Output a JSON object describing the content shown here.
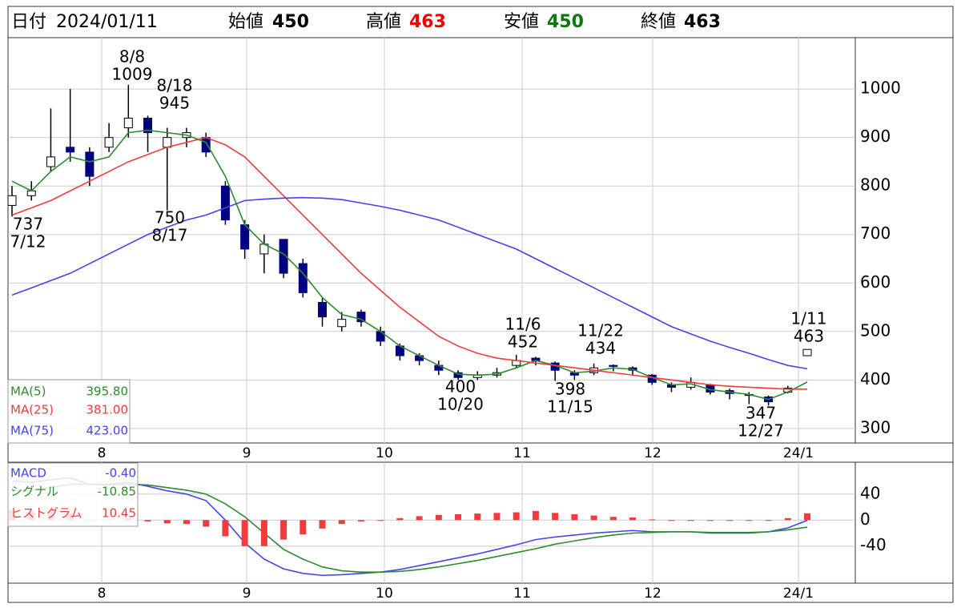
{
  "header": {
    "date_label": "日付",
    "date": "2024/01/11",
    "open_label": "始値",
    "open": 450,
    "high_label": "高値",
    "high": 463,
    "low_label": "安値",
    "low": 450,
    "close_label": "終値",
    "close": 463
  },
  "chart_data": [
    {
      "type": "candlestick",
      "months": [
        "8",
        "9",
        "10",
        "11",
        "12",
        "24/1"
      ],
      "open": [
        760,
        780,
        840,
        880,
        870,
        880,
        920,
        940,
        880,
        900,
        900,
        800,
        720,
        660,
        690,
        640,
        560,
        510,
        540,
        500,
        470,
        450,
        430,
        415,
        405,
        410,
        430,
        445,
        435,
        415,
        415,
        430,
        425,
        410,
        390,
        385,
        390,
        378,
        370,
        365,
        375,
        450
      ],
      "high": [
        800,
        810,
        960,
        1000,
        880,
        930,
        1009,
        945,
        920,
        920,
        910,
        810,
        730,
        700,
        690,
        650,
        570,
        540,
        545,
        510,
        475,
        455,
        440,
        420,
        418,
        425,
        452,
        448,
        438,
        420,
        434,
        432,
        428,
        412,
        395,
        405,
        392,
        382,
        375,
        368,
        388,
        463
      ],
      "low": [
        737,
        770,
        830,
        850,
        800,
        870,
        900,
        870,
        750,
        880,
        860,
        720,
        650,
        620,
        610,
        570,
        510,
        500,
        510,
        470,
        440,
        430,
        410,
        400,
        400,
        405,
        425,
        430,
        398,
        400,
        410,
        418,
        410,
        390,
        375,
        380,
        370,
        360,
        350,
        347,
        372,
        450
      ],
      "close": [
        780,
        790,
        860,
        870,
        820,
        900,
        940,
        910,
        900,
        910,
        870,
        730,
        670,
        680,
        620,
        580,
        530,
        525,
        520,
        480,
        450,
        440,
        420,
        405,
        410,
        415,
        440,
        440,
        420,
        410,
        425,
        428,
        420,
        395,
        385,
        395,
        375,
        372,
        368,
        355,
        383,
        463
      ],
      "up_color": "#ffffff",
      "down_color": "#000080",
      "series": [
        {
          "name": "MA(5)",
          "color": "#2e8b2e",
          "latest_label": "395.80",
          "values": [
            810,
            790,
            830,
            860,
            850,
            860,
            910,
            915,
            910,
            905,
            890,
            820,
            720,
            680,
            660,
            620,
            570,
            535,
            525,
            500,
            470,
            450,
            430,
            412,
            410,
            412,
            425,
            440,
            430,
            415,
            418,
            425,
            422,
            405,
            390,
            392,
            380,
            375,
            370,
            360,
            375,
            395.8
          ]
        },
        {
          "name": "MA(25)",
          "color": "#f03c3c",
          "latest_label": "381.00",
          "values": [
            740,
            755,
            770,
            790,
            810,
            830,
            850,
            865,
            880,
            890,
            900,
            885,
            860,
            820,
            780,
            740,
            700,
            660,
            620,
            585,
            550,
            520,
            490,
            470,
            455,
            445,
            440,
            435,
            430,
            425,
            420,
            415,
            410,
            405,
            400,
            395,
            390,
            387,
            385,
            383,
            381,
            381
          ]
        },
        {
          "name": "MA(75)",
          "color": "#4444ee",
          "latest_label": "423.00",
          "values": [
            575,
            590,
            605,
            620,
            640,
            660,
            680,
            700,
            715,
            730,
            740,
            755,
            770,
            773,
            775,
            776,
            775,
            772,
            765,
            758,
            750,
            740,
            730,
            715,
            700,
            685,
            670,
            650,
            630,
            610,
            590,
            570,
            550,
            530,
            510,
            495,
            480,
            467,
            455,
            442,
            430,
            423
          ]
        }
      ],
      "ylim": [
        270,
        1106
      ],
      "yticks": [
        300,
        400,
        500,
        600,
        700,
        800,
        900,
        1000
      ],
      "annotations": [
        {
          "date": "7/12",
          "value": 737
        },
        {
          "date": "8/8",
          "value": 1009
        },
        {
          "date": "8/17",
          "value": 750
        },
        {
          "date": "8/18",
          "value": 945
        },
        {
          "date": "10/20",
          "value": 400
        },
        {
          "date": "11/6",
          "value": 452
        },
        {
          "date": "11/15",
          "value": 398
        },
        {
          "date": "11/22",
          "value": 434
        },
        {
          "date": "12/27",
          "value": 347
        },
        {
          "date": "1/11",
          "value": 463
        }
      ]
    },
    {
      "type": "macd",
      "months": [
        "8",
        "9",
        "10",
        "11",
        "12",
        "24/1"
      ],
      "series": [
        {
          "name": "MACD",
          "color": "#4444ee",
          "latest_label": "-0.40",
          "values": [
            60,
            58,
            62,
            65,
            55,
            55,
            58,
            52,
            45,
            40,
            30,
            0,
            -35,
            -60,
            -75,
            -82,
            -85,
            -84,
            -82,
            -80,
            -76,
            -70,
            -64,
            -58,
            -52,
            -45,
            -38,
            -30,
            -26,
            -23,
            -20,
            -18,
            -16,
            -18,
            -18,
            -18,
            -20,
            -20,
            -20,
            -18,
            -12,
            -0.4
          ]
        },
        {
          "name": "シグナル",
          "color": "#2e8b2e",
          "latest_label": "-10.85",
          "values": [
            45,
            45,
            50,
            55,
            55,
            54,
            55,
            54,
            50,
            46,
            40,
            25,
            5,
            -20,
            -45,
            -60,
            -72,
            -78,
            -80,
            -80,
            -79,
            -76,
            -72,
            -67,
            -62,
            -56,
            -50,
            -44,
            -37,
            -32,
            -27,
            -23,
            -20,
            -19,
            -18,
            -18,
            -19,
            -19,
            -19,
            -18,
            -15,
            -10.85
          ]
        },
        {
          "name": "ヒストグラム",
          "color": "#f03c3c",
          "latest_label": "10.45",
          "bars": true,
          "values": [
            15,
            13,
            12,
            10,
            0,
            1,
            3,
            -2,
            -5,
            -6,
            -10,
            -25,
            -40,
            -40,
            -30,
            -22,
            -13,
            -6,
            -2,
            0,
            3,
            6,
            8,
            9,
            10,
            11,
            12,
            14,
            11,
            9,
            7,
            5,
            4,
            1,
            0,
            0,
            -1,
            -1,
            -1,
            0,
            3,
            10.45
          ]
        }
      ],
      "ylim": [
        -97,
        89
      ],
      "yticks": [
        -40,
        0,
        40
      ]
    }
  ]
}
